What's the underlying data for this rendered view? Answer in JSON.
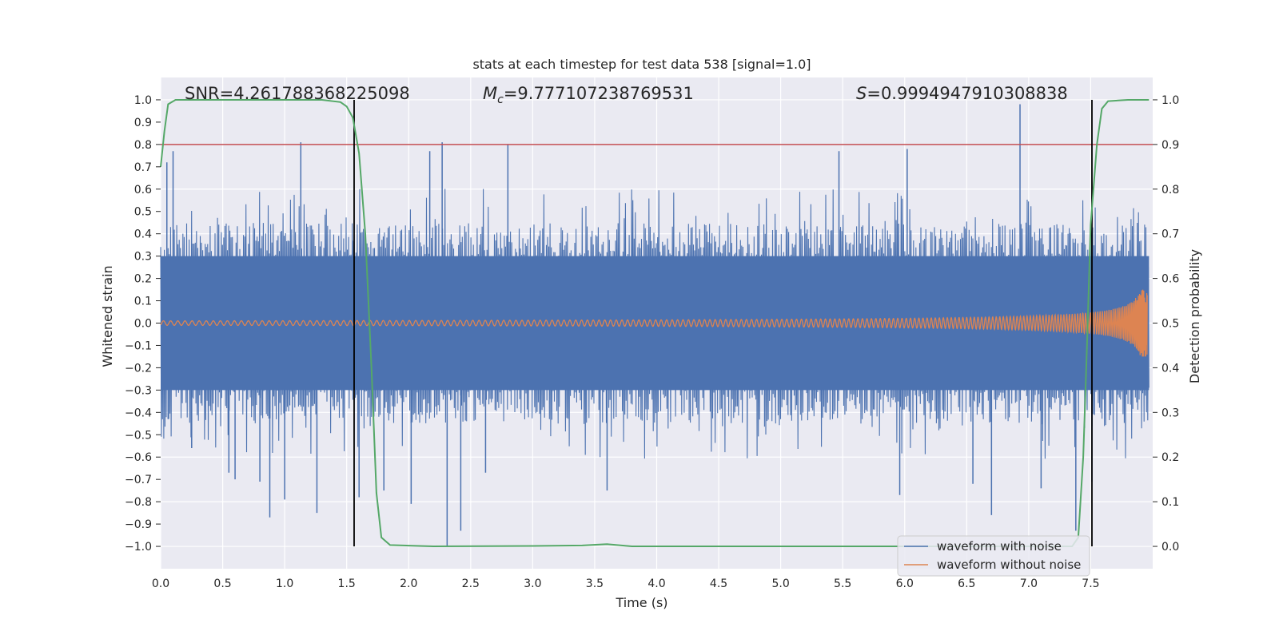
{
  "chart_data": {
    "type": "line",
    "title": "stats at each timestep for test data 538 [signal=1.0]",
    "xlabel": "Time (s)",
    "ylabel": "Whitened strain",
    "y2label": "Detection probability",
    "xlim": [
      0.0,
      8.0
    ],
    "ylim": [
      -1.1,
      1.1
    ],
    "y2lim": [
      -0.05,
      1.05
    ],
    "xticks": [
      "0.0",
      "0.5",
      "1.0",
      "1.5",
      "2.0",
      "2.5",
      "3.0",
      "3.5",
      "4.0",
      "4.5",
      "5.0",
      "5.5",
      "6.0",
      "6.5",
      "7.0",
      "7.5"
    ],
    "yticks": [
      "1.0",
      "0.9",
      "0.8",
      "0.7",
      "0.6",
      "0.5",
      "0.4",
      "0.3",
      "0.2",
      "0.1",
      "0.0",
      "−0.1",
      "−0.2",
      "−0.3",
      "−0.4",
      "−0.5",
      "−0.6",
      "−0.7",
      "−0.8",
      "−0.9",
      "−1.0"
    ],
    "y2ticks": [
      "1.0",
      "0.9",
      "0.8",
      "0.7",
      "0.6",
      "0.5",
      "0.4",
      "0.3",
      "0.2",
      "0.1",
      "0.0"
    ],
    "annotations": {
      "snr": "SNR=4.261788368225098",
      "mc_symbol": "M",
      "mc_sub": "c",
      "mc_value": "=9.777107238769531",
      "s_symbol": "S",
      "s_value": "=0.9994947910308838"
    },
    "threshold": {
      "axis": "y2",
      "value": 0.9,
      "color": "#c44e52"
    },
    "vlines_x": [
      1.56,
      7.51
    ],
    "series": [
      {
        "name": "waveform with noise",
        "color": "#4c72b0",
        "axis": "y",
        "kind": "noise",
        "amplitude_envelope": 0.45,
        "peaks": [
          {
            "x": 0.05,
            "y": 0.72
          },
          {
            "x": 0.06,
            "y": -0.43
          },
          {
            "x": 0.1,
            "y": 0.77
          },
          {
            "x": 0.25,
            "y": -0.56
          },
          {
            "x": 0.55,
            "y": -0.67
          },
          {
            "x": 0.6,
            "y": -0.7
          },
          {
            "x": 0.8,
            "y": -0.71
          },
          {
            "x": 0.88,
            "y": -0.87
          },
          {
            "x": 1.0,
            "y": -0.79
          },
          {
            "x": 1.13,
            "y": 0.81
          },
          {
            "x": 1.26,
            "y": -0.85
          },
          {
            "x": 1.6,
            "y": -0.78
          },
          {
            "x": 1.8,
            "y": -0.75
          },
          {
            "x": 2.02,
            "y": -0.81
          },
          {
            "x": 2.17,
            "y": 0.77
          },
          {
            "x": 2.27,
            "y": 0.81
          },
          {
            "x": 2.31,
            "y": -1.0
          },
          {
            "x": 2.42,
            "y": -0.93
          },
          {
            "x": 2.62,
            "y": -0.67
          },
          {
            "x": 2.8,
            "y": 0.8
          },
          {
            "x": 3.6,
            "y": -0.75
          },
          {
            "x": 5.47,
            "y": 0.77
          },
          {
            "x": 5.96,
            "y": -0.77
          },
          {
            "x": 6.02,
            "y": 0.78
          },
          {
            "x": 6.55,
            "y": -0.72
          },
          {
            "x": 6.7,
            "y": -0.86
          },
          {
            "x": 6.93,
            "y": 0.98
          },
          {
            "x": 7.1,
            "y": -0.74
          },
          {
            "x": 7.38,
            "y": -0.93
          },
          {
            "x": 7.51,
            "y": -0.71
          }
        ]
      },
      {
        "name": "waveform without noise",
        "color": "#dd8452",
        "axis": "y",
        "kind": "chirp",
        "merger_time": 7.96,
        "peak_amplitude": 0.15,
        "base_amplitude": 0.01
      },
      {
        "name": "detection probability",
        "color": "#55a868",
        "axis": "y2",
        "kind": "line",
        "points": [
          [
            0.0,
            0.85
          ],
          [
            0.03,
            0.93
          ],
          [
            0.06,
            0.99
          ],
          [
            0.12,
            1.0
          ],
          [
            0.5,
            1.0
          ],
          [
            1.0,
            1.0
          ],
          [
            1.3,
            1.0
          ],
          [
            1.45,
            0.995
          ],
          [
            1.5,
            0.985
          ],
          [
            1.55,
            0.96
          ],
          [
            1.6,
            0.88
          ],
          [
            1.65,
            0.7
          ],
          [
            1.7,
            0.4
          ],
          [
            1.74,
            0.12
          ],
          [
            1.78,
            0.02
          ],
          [
            1.85,
            0.003
          ],
          [
            2.2,
            0.0
          ],
          [
            3.0,
            0.001
          ],
          [
            3.4,
            0.002
          ],
          [
            3.6,
            0.005
          ],
          [
            3.8,
            0.0
          ],
          [
            5.0,
            0.0
          ],
          [
            7.2,
            0.0
          ],
          [
            7.35,
            0.0
          ],
          [
            7.4,
            0.02
          ],
          [
            7.44,
            0.2
          ],
          [
            7.47,
            0.45
          ],
          [
            7.5,
            0.72
          ],
          [
            7.55,
            0.9
          ],
          [
            7.59,
            0.98
          ],
          [
            7.64,
            0.997
          ],
          [
            7.8,
            1.0
          ],
          [
            7.97,
            1.0
          ]
        ]
      }
    ],
    "legend": {
      "position": "lower-right",
      "entries": [
        {
          "label": "waveform with noise",
          "color": "#4c72b0"
        },
        {
          "label": "waveform without noise",
          "color": "#dd8452"
        }
      ]
    },
    "background_color": "#eaeaf2",
    "grid": true
  }
}
